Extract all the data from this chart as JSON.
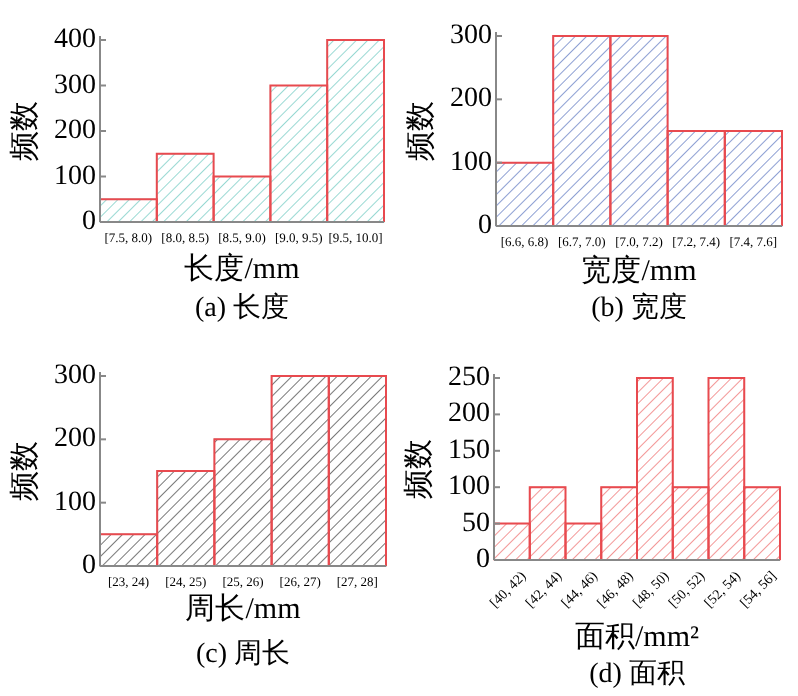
{
  "chart_data": [
    {
      "type": "bar",
      "title": "(a) 长度",
      "xlabel": "长度/mm",
      "ylabel": "频数",
      "categories": [
        "[7.5, 8.0)",
        "[8.0, 8.5)",
        "[8.5, 9.0)",
        "[9.0, 9.5)",
        "[9.5, 10.0]"
      ],
      "values": [
        50,
        150,
        100,
        300,
        400
      ],
      "color": "#7fcfc8",
      "ylim": [
        0,
        400
      ],
      "yticks": [
        0,
        100,
        200,
        300,
        400
      ]
    },
    {
      "type": "bar",
      "title": "(b) 宽度",
      "xlabel": "宽度/mm",
      "ylabel": "频数",
      "categories": [
        "[6.6, 6.8)",
        "[6.7, 7.0)",
        "[7.0, 7.2)",
        "[7.2, 7.4)",
        "[7.4, 7.6]"
      ],
      "values": [
        100,
        300,
        300,
        150,
        150
      ],
      "color": "#6f86c8",
      "ylim": [
        0,
        300
      ],
      "yticks": [
        0,
        100,
        200,
        300
      ]
    },
    {
      "type": "bar",
      "title": "(c) 周长",
      "xlabel": "周长/mm",
      "ylabel": "频数",
      "categories": [
        "[23, 24)",
        "[24, 25)",
        "[25, 26)",
        "[26, 27)",
        "[27, 28]"
      ],
      "values": [
        50,
        150,
        200,
        300,
        300
      ],
      "color": "#555555",
      "ylim": [
        0,
        300
      ],
      "yticks": [
        0,
        100,
        200,
        300
      ]
    },
    {
      "type": "bar",
      "title": "(d) 面积",
      "xlabel": "面积/mm²",
      "ylabel": "频数",
      "categories": [
        "[40, 42)",
        "[42, 44)",
        "[44, 46)",
        "[46, 48)",
        "[48, 50)",
        "[50, 52)",
        "[52, 54)",
        "[54, 56]"
      ],
      "values": [
        50,
        100,
        50,
        100,
        250,
        100,
        250,
        100
      ],
      "color": "#f07c7c",
      "ylim": [
        0,
        250
      ],
      "yticks": [
        0,
        50,
        100,
        150,
        200,
        250
      ]
    }
  ]
}
